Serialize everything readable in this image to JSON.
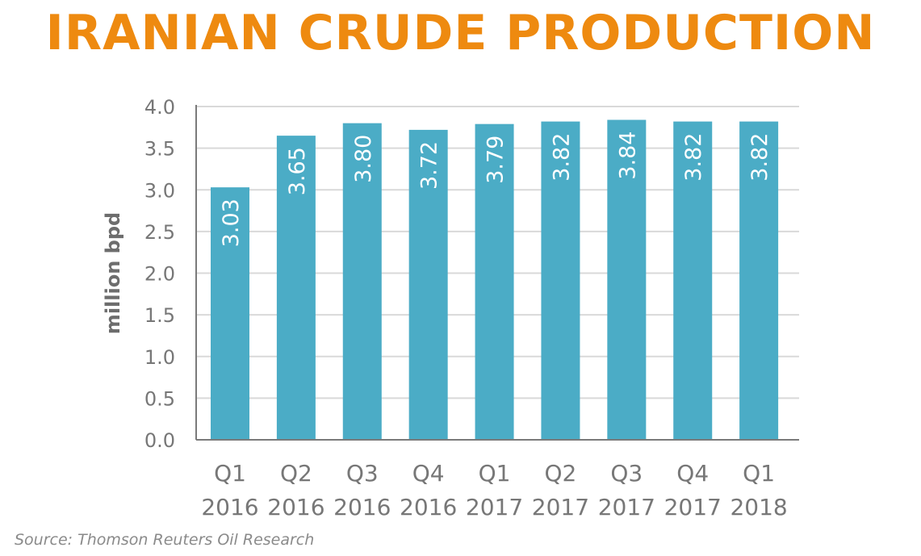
{
  "title": "IRANIAN CRUDE PRODUCTION",
  "source": "Source: Thomson Reuters Oil Research",
  "colors": {
    "title": "#ee8a10",
    "bar": "#4bacc6",
    "grid": "#d9d9d9",
    "axis": "#7a7a7a"
  },
  "chart_data": {
    "type": "bar",
    "title": "IRANIAN CRUDE PRODUCTION",
    "xlabel": "",
    "ylabel": "million bpd",
    "categories": [
      [
        "Q1",
        "2016"
      ],
      [
        "Q2",
        "2016"
      ],
      [
        "Q3",
        "2016"
      ],
      [
        "Q4",
        "2016"
      ],
      [
        "Q1",
        "2017"
      ],
      [
        "Q2",
        "2017"
      ],
      [
        "Q3",
        "2017"
      ],
      [
        "Q4",
        "2017"
      ],
      [
        "Q1",
        "2018"
      ]
    ],
    "values": [
      3.03,
      3.65,
      3.8,
      3.72,
      3.79,
      3.82,
      3.84,
      3.82,
      3.82
    ],
    "value_labels": [
      "3.03",
      "3.65",
      "3.80",
      "3.72",
      "3.79",
      "3.82",
      "3.84",
      "3.82",
      "3.82"
    ],
    "ylim": [
      0,
      4.0
    ],
    "yticks": [
      "0.0",
      "0.5",
      "1.0",
      "1.5",
      "2.0",
      "2.5",
      "3.0",
      "3.5",
      "4.0"
    ],
    "grid": true,
    "legend": "none"
  }
}
